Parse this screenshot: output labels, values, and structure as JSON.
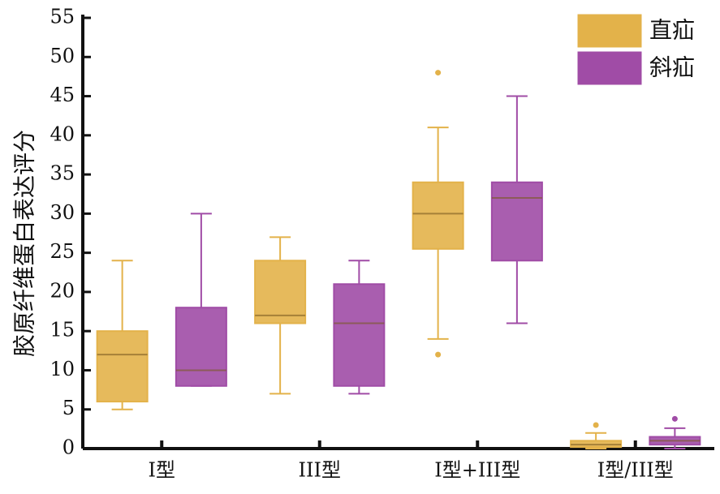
{
  "chart_data": {
    "type": "box",
    "y_label": "胶原纤维蛋白表达评分",
    "categories": [
      "I型",
      "III型",
      "I型+III型",
      "I型/III型"
    ],
    "ylim": [
      0,
      55
    ],
    "yticks": [
      0,
      5,
      10,
      15,
      20,
      25,
      30,
      35,
      40,
      45,
      50,
      55
    ],
    "legend": "top-right",
    "series": [
      {
        "name": "直疝",
        "color": "#e3b24a",
        "boxes": [
          {
            "low": 5,
            "q1": 6,
            "median": 12,
            "q3": 15,
            "high": 24,
            "outliers": []
          },
          {
            "low": 7,
            "q1": 16,
            "median": 17,
            "q3": 24,
            "high": 27,
            "outliers": []
          },
          {
            "low": 14,
            "q1": 25.5,
            "median": 30,
            "q3": 34,
            "high": 41,
            "outliers": [
              48,
              12
            ]
          },
          {
            "low": 0,
            "q1": 0.2,
            "median": 0.5,
            "q3": 1,
            "high": 2,
            "outliers": [
              3
            ]
          }
        ]
      },
      {
        "name": "斜疝",
        "color": "#a04ca6",
        "boxes": [
          {
            "low": 8,
            "q1": 8,
            "median": 10,
            "q3": 18,
            "high": 30,
            "outliers": []
          },
          {
            "low": 7,
            "q1": 8,
            "median": 16,
            "q3": 21,
            "high": 24,
            "outliers": []
          },
          {
            "low": 16,
            "q1": 24,
            "median": 32,
            "q3": 34,
            "high": 45,
            "outliers": []
          },
          {
            "low": 0,
            "q1": 0.5,
            "median": 1,
            "q3": 1.5,
            "high": 2.6,
            "outliers": [
              3.8
            ]
          }
        ]
      }
    ]
  }
}
